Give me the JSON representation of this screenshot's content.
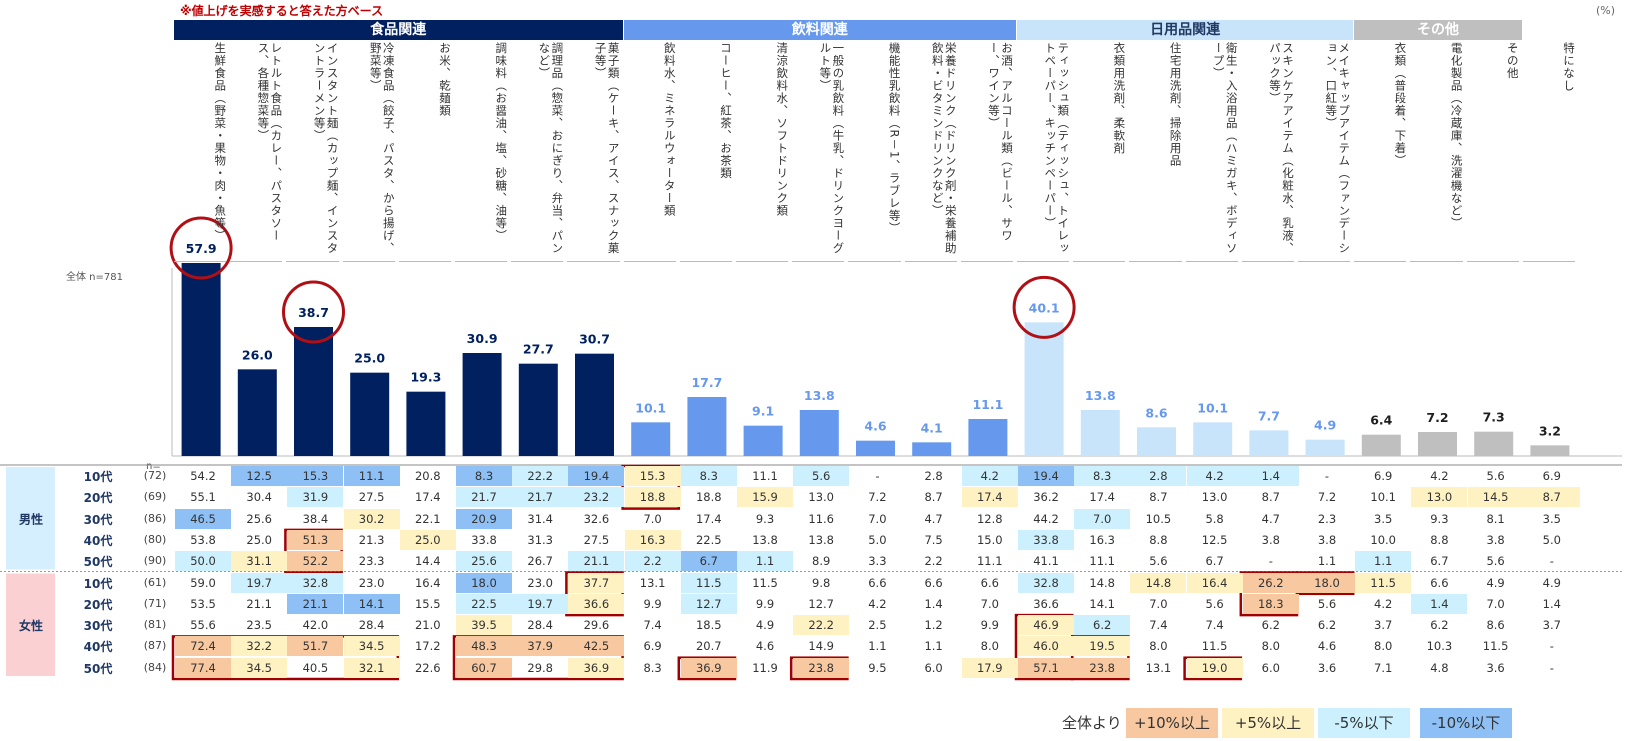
{
  "note": "※値上げを実感すると答えた方ベース",
  "unit": "(%)",
  "n_total_label": "全体 n=781",
  "n_eq_label": "n=",
  "colors": {
    "food": "#002060",
    "drink": "#6699ee",
    "daily": "#c8e4fb",
    "other": "#bfbfbf",
    "none": "#bfbfbf",
    "circle": "#b01015",
    "box": "#a00000",
    "male_band": "#d6efff",
    "female_band": "#fbd0d3",
    "plus10": "#f8c9a0",
    "plus5": "#fff2c2",
    "minus5": "#ccf0fd",
    "minus10": "#8ec0f5"
  },
  "groups": [
    {
      "name": "食品関連",
      "color": "#002060",
      "text": "#ffffff",
      "start": 0,
      "end": 7
    },
    {
      "name": "飲料関連",
      "color": "#6699ee",
      "text": "#ffffff",
      "start": 8,
      "end": 14
    },
    {
      "name": "日用品関連",
      "color": "#c8e4fb",
      "text": "#1f3864",
      "start": 15,
      "end": 20
    },
    {
      "name": "その他",
      "color": "#bfbfbf",
      "text": "#ffffff",
      "start": 21,
      "end": 23
    }
  ],
  "segments": [
    {
      "name": "男性",
      "color": "#d6efff",
      "start": 0,
      "end": 4
    },
    {
      "name": "女性",
      "color": "#fbd0d3",
      "start": 5,
      "end": 9
    }
  ],
  "legend": {
    "lead": "全体より",
    "items": [
      {
        "label": "+10%以上",
        "color": "#f8c9a0"
      },
      {
        "label": "+5%以上",
        "color": "#fff2c2"
      },
      {
        "label": "-5%以下",
        "color": "#ccf0fd"
      },
      {
        "label": "-10%以下",
        "color": "#8ec0f5"
      }
    ]
  },
  "chart_data": {
    "type": "bar",
    "categories": [
      "生鮮食品（野菜・果物・肉・魚等）",
      "レトルト食品（カレー、パスタソース、各種惣菜等）",
      "インスタント麺（カップ麺、インスタントラーメン等）",
      "冷凍食品（餃子、パスタ、から揚げ、野菜等）",
      "お米、乾麺類",
      "調味料（お醤油、塩、砂糖、油等）",
      "調理品（惣菜、おにぎり、弁当、パンなど）",
      "菓子類（ケーキ、アイス、スナック菓子等）",
      "飲料水、ミネラルウォーター類",
      "コーヒー、紅茶、お茶類",
      "清涼飲料水、ソフトドリンク類",
      "一般の乳飲料（牛乳、ドリンクヨーグルト等）",
      "機能性乳飲料（R－1、ラブレ等）",
      "栄養ドリンク（ドリンク剤・栄養補助飲料・ビタミンドリンクなど）",
      "お酒、アルコール類（ビール、サワー、ワイン等）",
      "ティッシュ類（ティッシュ、トイレットペーパー、キッチンペーパー）",
      "衣類用洗剤、柔軟剤",
      "住宅用洗剤、掃除用品",
      "衛生・入浴用品（ハミガキ、ボディソープ）",
      "スキンケアアイテム（化粧水、乳液、パック等）",
      "メイキャップアイテム（ファンデーション、口紅等）",
      "衣類（普段着、下着）",
      "電化製品（冷蔵庫、洗濯機など）",
      "その他",
      "特になし"
    ],
    "values": [
      57.9,
      26.0,
      38.7,
      25.0,
      19.3,
      30.9,
      27.7,
      30.7,
      10.1,
      17.7,
      9.1,
      13.8,
      4.6,
      4.1,
      11.1,
      40.1,
      13.8,
      8.6,
      10.1,
      7.7,
      4.9,
      6.4,
      7.2,
      7.3,
      3.2
    ],
    "highlighted": [
      0,
      2,
      15
    ],
    "ylim": [
      0,
      60
    ],
    "table": {
      "rows": [
        {
          "age": "10代",
          "n": "(72)",
          "values": [
            "54.2",
            "12.5",
            "15.3",
            "11.1",
            "20.8",
            "8.3",
            "22.2",
            "19.4",
            "15.3",
            "8.3",
            "11.1",
            "5.6",
            "-",
            "2.8",
            "4.2",
            "19.4",
            "8.3",
            "2.8",
            "4.2",
            "1.4",
            "-",
            "6.9",
            "4.2",
            "5.6",
            "6.9"
          ]
        },
        {
          "age": "20代",
          "n": "(69)",
          "values": [
            "55.1",
            "30.4",
            "31.9",
            "27.5",
            "17.4",
            "21.7",
            "21.7",
            "23.2",
            "18.8",
            "18.8",
            "15.9",
            "13.0",
            "7.2",
            "8.7",
            "17.4",
            "36.2",
            "17.4",
            "8.7",
            "13.0",
            "8.7",
            "7.2",
            "10.1",
            "13.0",
            "14.5",
            "8.7"
          ]
        },
        {
          "age": "30代",
          "n": "(86)",
          "values": [
            "46.5",
            "25.6",
            "38.4",
            "30.2",
            "22.1",
            "20.9",
            "31.4",
            "32.6",
            "7.0",
            "17.4",
            "9.3",
            "11.6",
            "7.0",
            "4.7",
            "12.8",
            "44.2",
            "7.0",
            "10.5",
            "5.8",
            "4.7",
            "2.3",
            "3.5",
            "9.3",
            "8.1",
            "3.5"
          ]
        },
        {
          "age": "40代",
          "n": "(80)",
          "values": [
            "53.8",
            "25.0",
            "51.3",
            "21.3",
            "25.0",
            "33.8",
            "31.3",
            "27.5",
            "16.3",
            "22.5",
            "13.8",
            "13.8",
            "5.0",
            "7.5",
            "15.0",
            "33.8",
            "16.3",
            "8.8",
            "12.5",
            "3.8",
            "3.8",
            "10.0",
            "8.8",
            "3.8",
            "5.0"
          ]
        },
        {
          "age": "50代",
          "n": "(90)",
          "values": [
            "50.0",
            "31.1",
            "52.2",
            "23.3",
            "14.4",
            "25.6",
            "26.7",
            "21.1",
            "2.2",
            "6.7",
            "1.1",
            "8.9",
            "3.3",
            "2.2",
            "11.1",
            "41.1",
            "11.1",
            "5.6",
            "6.7",
            "-",
            "1.1",
            "1.1",
            "6.7",
            "5.6",
            "-"
          ]
        },
        {
          "age": "10代",
          "n": "(61)",
          "values": [
            "59.0",
            "19.7",
            "32.8",
            "23.0",
            "16.4",
            "18.0",
            "23.0",
            "37.7",
            "13.1",
            "11.5",
            "11.5",
            "9.8",
            "6.6",
            "6.6",
            "6.6",
            "32.8",
            "14.8",
            "14.8",
            "16.4",
            "26.2",
            "18.0",
            "11.5",
            "6.6",
            "4.9",
            "4.9"
          ]
        },
        {
          "age": "20代",
          "n": "(71)",
          "values": [
            "53.5",
            "21.1",
            "21.1",
            "14.1",
            "15.5",
            "22.5",
            "19.7",
            "36.6",
            "9.9",
            "12.7",
            "9.9",
            "12.7",
            "4.2",
            "1.4",
            "7.0",
            "36.6",
            "14.1",
            "7.0",
            "5.6",
            "18.3",
            "5.6",
            "4.2",
            "1.4",
            "7.0",
            "1.4"
          ]
        },
        {
          "age": "30代",
          "n": "(81)",
          "values": [
            "55.6",
            "23.5",
            "42.0",
            "28.4",
            "21.0",
            "39.5",
            "28.4",
            "29.6",
            "7.4",
            "18.5",
            "4.9",
            "22.2",
            "2.5",
            "1.2",
            "9.9",
            "46.9",
            "6.2",
            "7.4",
            "7.4",
            "6.2",
            "6.2",
            "3.7",
            "6.2",
            "8.6",
            "3.7"
          ]
        },
        {
          "age": "40代",
          "n": "(87)",
          "values": [
            "72.4",
            "32.2",
            "51.7",
            "34.5",
            "17.2",
            "48.3",
            "37.9",
            "42.5",
            "6.9",
            "20.7",
            "4.6",
            "14.9",
            "1.1",
            "1.1",
            "8.0",
            "46.0",
            "19.5",
            "8.0",
            "11.5",
            "8.0",
            "4.6",
            "8.0",
            "10.3",
            "11.5",
            "-"
          ]
        },
        {
          "age": "50代",
          "n": "(84)",
          "values": [
            "77.4",
            "34.5",
            "40.5",
            "32.1",
            "22.6",
            "60.7",
            "29.8",
            "36.9",
            "8.3",
            "36.9",
            "11.9",
            "23.8",
            "9.5",
            "6.0",
            "17.9",
            "57.1",
            "23.8",
            "13.1",
            "19.0",
            "6.0",
            "3.6",
            "7.1",
            "4.8",
            "3.6",
            "-"
          ]
        }
      ]
    }
  },
  "boxes": [
    {
      "r0": 3,
      "r1": 4,
      "c0": 2,
      "c1": 2
    },
    {
      "r0": 0,
      "r1": 1,
      "c0": 8,
      "c1": 8
    },
    {
      "r0": 5,
      "r1": 6,
      "c0": 7,
      "c1": 7
    },
    {
      "r0": 5,
      "r1": 6,
      "c0": 19,
      "c1": 19
    },
    {
      "r0": 5,
      "r1": 5,
      "c0": 20,
      "c1": 20
    },
    {
      "r0": 8,
      "r1": 9,
      "c0": 0,
      "c1": 3
    },
    {
      "r0": 8,
      "r1": 9,
      "c0": 5,
      "c1": 7
    },
    {
      "r0": 7,
      "r1": 9,
      "c0": 15,
      "c1": 15
    },
    {
      "r0": 8,
      "r1": 9,
      "c0": 16,
      "c1": 16
    },
    {
      "r0": 9,
      "r1": 9,
      "c0": 9,
      "c1": 9
    },
    {
      "r0": 9,
      "r1": 9,
      "c0": 11,
      "c1": 11
    },
    {
      "r0": 9,
      "r1": 9,
      "c0": 18,
      "c1": 18
    }
  ]
}
